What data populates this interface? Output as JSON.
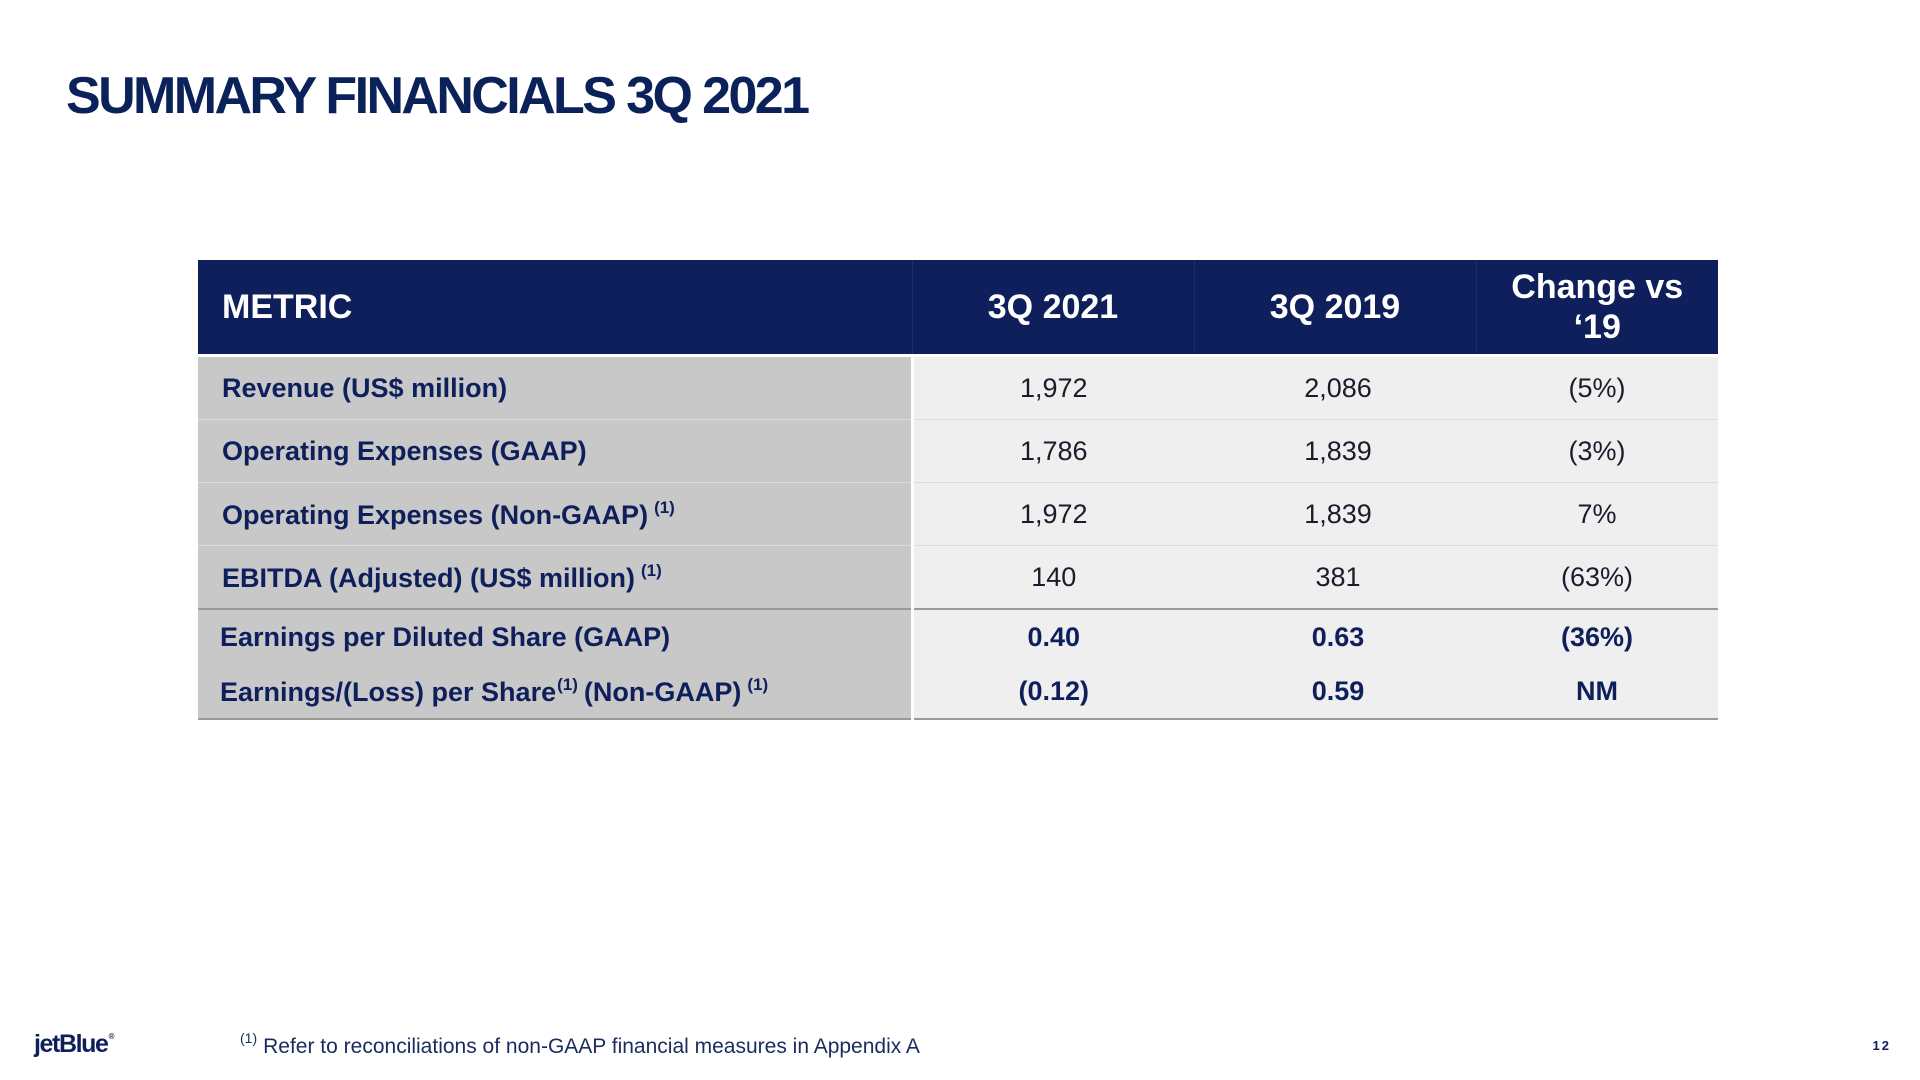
{
  "slide": {
    "title": "SUMMARY FINANCIALS 3Q 2021",
    "page_number": "12"
  },
  "table": {
    "headers": {
      "metric": "METRIC",
      "q2021": "3Q 2021",
      "q2019": "3Q 2019",
      "change_line1": "Change vs",
      "change_line2": "‘19"
    },
    "rows": [
      {
        "metric": "Revenue (US$ million)",
        "q2021": "1,972",
        "q2019": "2,086",
        "change": "(5%)"
      },
      {
        "metric": "Operating Expenses (GAAP)",
        "q2021": "1,786",
        "q2019": "1,839",
        "change": "(3%)"
      },
      {
        "metric": "Operating Expenses (Non-GAAP)",
        "note": "(1)",
        "q2021": "1,972",
        "q2019": "1,839",
        "change": "7%"
      },
      {
        "metric": "EBITDA (Adjusted) (US$ million)",
        "note": "(1)",
        "q2021": "140",
        "q2019": "381",
        "change": "(63%)"
      },
      {
        "metric": "Earnings per Diluted Share (GAAP)",
        "q2021": "0.40",
        "q2019": "0.63",
        "change": "(36%)"
      },
      {
        "metric_part1": "Earnings/(Loss) per Share",
        "note_inline": "(1)",
        "metric_part2": "(Non-GAAP)",
        "note": "(1)",
        "q2021": "(0.12)",
        "q2019": "0.59",
        "change": "NM"
      }
    ]
  },
  "footer": {
    "footnote_marker": "(1)",
    "footnote_text": "Refer to reconciliations of non-GAAP financial measures in Appendix A",
    "logo_text": "jetBlue",
    "logo_mark": "®"
  },
  "colors": {
    "navy": "#0e1f5c",
    "metric_cell_bg": "#c8c8c8",
    "value_cell_bg": "#efefef"
  }
}
